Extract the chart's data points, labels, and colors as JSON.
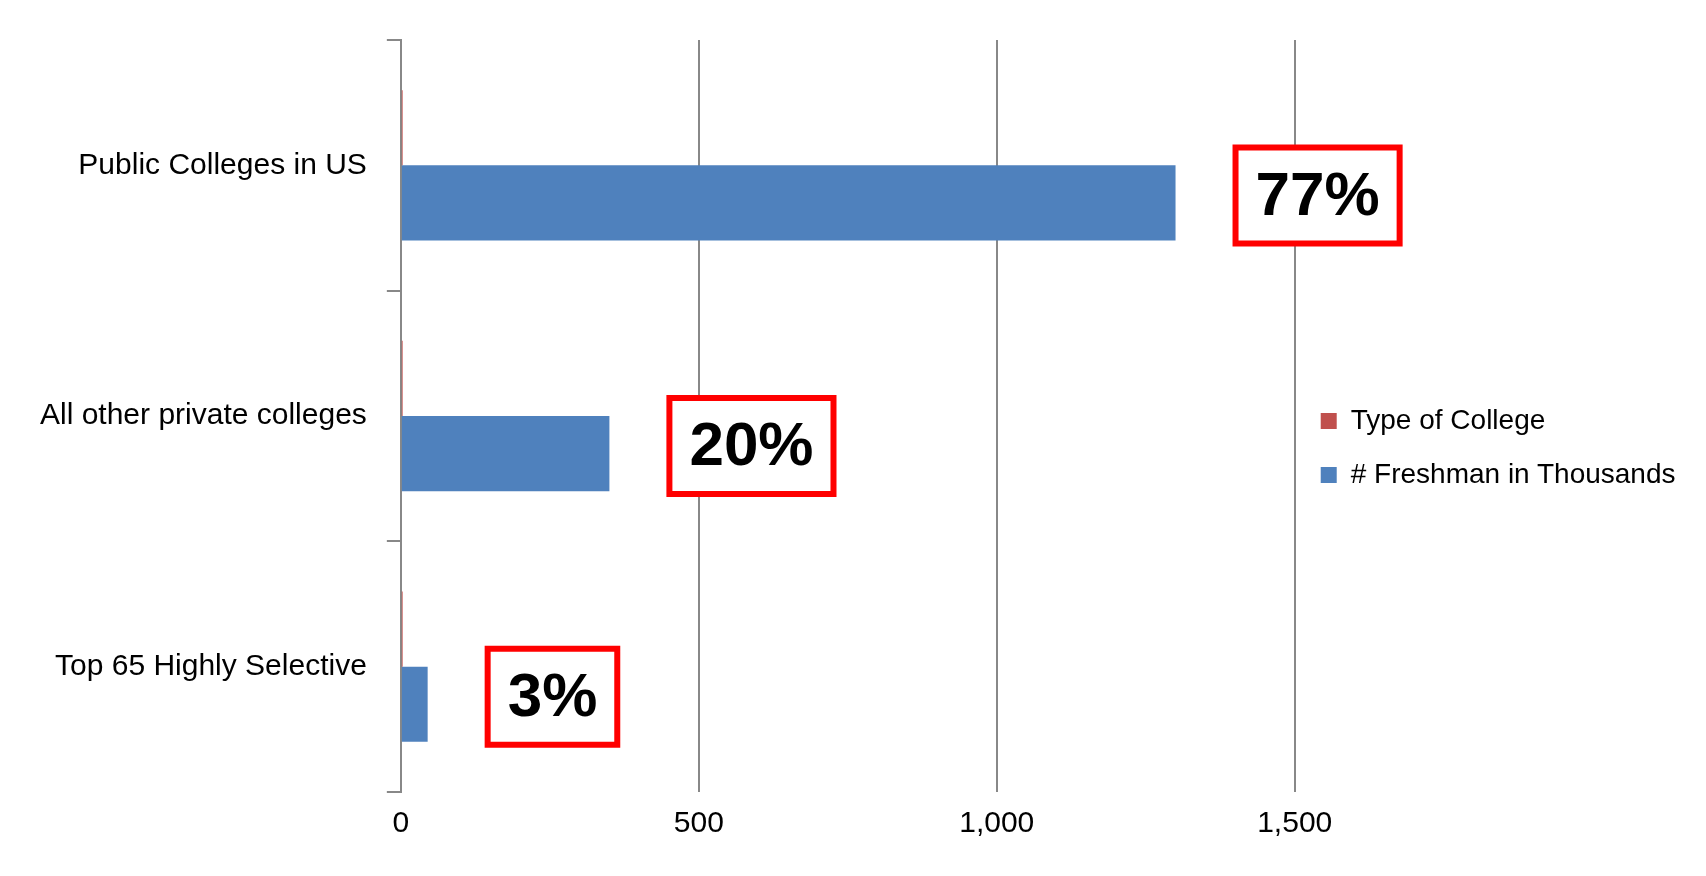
{
  "chart_data": {
    "type": "bar",
    "orientation": "horizontal",
    "categories": [
      "Public Colleges in US",
      "All other private colleges",
      "Top 65 Highly Selective"
    ],
    "series": [
      {
        "name": "Type of College",
        "color": "#c0504d",
        "values": [
          3,
          3,
          3
        ]
      },
      {
        "name": "# Freshman in Thousands",
        "color": "#4f81bd",
        "values": [
          1300,
          350,
          45
        ]
      }
    ],
    "xlim": [
      0,
      1500
    ],
    "xticks": [
      0,
      500,
      {
        "value": 1000,
        "label": "1,000"
      },
      {
        "value": 1500,
        "label": "1,500"
      }
    ],
    "grid": "x",
    "legend": "right",
    "annotations": [
      {
        "text": "77%",
        "x": 1300,
        "y": "Public Colleges in US"
      },
      {
        "text": "20%",
        "x": 350,
        "y": "All other private colleges"
      },
      {
        "text": "3%",
        "x": 45,
        "y": "Top 65 Highly Selective"
      }
    ]
  }
}
